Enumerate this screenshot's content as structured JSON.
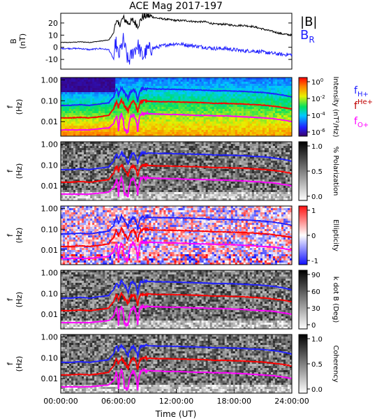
{
  "title": "ACE Mag 2017-197",
  "xlabel": "Time (UT)",
  "xticks": [
    "00:00:00",
    "06:00:00",
    "12:00:00",
    "18:00:00",
    "24:00:00"
  ],
  "freq_ticks": [
    "1.00",
    "0.10",
    "0.01"
  ],
  "freq_ylabel": [
    "f",
    "(Hz)"
  ],
  "colors": {
    "black": "#000000",
    "blue": "#2020ff",
    "red": "#ff0000",
    "magenta": "#ff00ff",
    "darkred": "#c00000"
  },
  "legend_b": {
    "total": "|B|",
    "radial": "B",
    "radial_sub": "R"
  },
  "legend_f": [
    {
      "base": "f",
      "sub": "H+",
      "sup": "",
      "color": "#2020ff"
    },
    {
      "base": "f",
      "sub": "",
      "sup": "He+",
      "color": "#c00000"
    },
    {
      "base": "f",
      "sub": "O+",
      "sup": "",
      "color": "#ff00ff"
    }
  ],
  "chart_data": [
    {
      "type": "line",
      "panel": "B",
      "ylabel": [
        "B",
        "(nT)"
      ],
      "yticks": [
        "20",
        "10",
        "0",
        "-10"
      ],
      "ylim": [
        -18,
        28
      ],
      "x_hours": [
        0,
        1,
        2,
        3,
        4,
        5,
        5.5,
        5.7,
        6,
        6.5,
        7,
        7.5,
        8,
        8.5,
        9,
        10,
        11,
        12,
        13,
        14,
        15,
        16,
        17,
        18,
        19,
        20,
        21,
        22,
        23,
        24
      ],
      "series": [
        {
          "name": "|B|",
          "color": "#000000",
          "values": [
            4,
            4,
            4.5,
            4,
            5,
            6,
            12,
            22,
            18,
            24,
            20,
            22,
            18,
            25,
            26,
            24,
            23,
            22,
            22,
            21,
            21,
            19,
            19,
            18,
            18,
            17,
            15,
            13,
            11,
            10
          ]
        },
        {
          "name": "B_R",
          "color": "#2020ff",
          "values": [
            -1,
            -1,
            -1,
            -2,
            -1,
            -2,
            -10,
            5,
            -8,
            6,
            -12,
            -4,
            2,
            -8,
            -2,
            0,
            2,
            3,
            2,
            1,
            0,
            -1,
            -1,
            -2,
            -3,
            -3,
            -4,
            -5,
            -6,
            -6
          ]
        }
      ]
    },
    {
      "type": "heatmap",
      "panel": "Intensity",
      "colorbar_label": "Intensity (nT²/Hz)",
      "colorbar_ticks": [
        "10^0",
        "10^-2",
        "10^-4",
        "10^-6"
      ],
      "colormap": "rainbow"
    },
    {
      "type": "heatmap",
      "panel": "% Polarization",
      "colorbar_label": "% Polarization",
      "colorbar_ticks": [
        "1.0",
        "0.5",
        "0.0"
      ],
      "colormap": "gray"
    },
    {
      "type": "heatmap",
      "panel": "Ellipticity",
      "colorbar_label": "Ellipticity",
      "colorbar_ticks": [
        "1",
        "0",
        "-1"
      ],
      "colormap": "bwr"
    },
    {
      "type": "heatmap",
      "panel": "k dot B",
      "colorbar_label": "k dot B (Deg)",
      "colorbar_ticks": [
        "90",
        "60",
        "30",
        "0"
      ],
      "colormap": "gray"
    },
    {
      "type": "heatmap",
      "panel": "Coherency",
      "colorbar_label": "Coherency",
      "colorbar_ticks": [
        "1.0",
        "0.5",
        "0.0"
      ],
      "colormap": "gray"
    },
    {
      "type": "line",
      "panel": "gyrofrequencies",
      "ylabel": "f (Hz)",
      "x_hours": [
        0,
        1,
        2,
        3,
        4,
        5,
        5.5,
        5.8,
        6,
        6.3,
        6.6,
        7,
        7.3,
        7.6,
        8,
        8.3,
        8.6,
        9,
        10,
        11,
        12,
        13,
        14,
        15,
        16,
        17,
        18,
        19,
        20,
        21,
        22,
        23,
        24
      ],
      "series": [
        {
          "name": "H+",
          "color": "#2020ff",
          "values": [
            0.06,
            0.06,
            0.065,
            0.06,
            0.07,
            0.08,
            0.15,
            0.35,
            0.2,
            0.4,
            0.25,
            0.12,
            0.3,
            0.35,
            0.1,
            0.35,
            0.38,
            0.38,
            0.36,
            0.36,
            0.35,
            0.34,
            0.33,
            0.32,
            0.3,
            0.3,
            0.29,
            0.28,
            0.26,
            0.25,
            0.22,
            0.19,
            0.15
          ]
        },
        {
          "name": "He+",
          "color": "#ff0000",
          "values": [
            0.015,
            0.015,
            0.016,
            0.015,
            0.017,
            0.02,
            0.04,
            0.09,
            0.05,
            0.1,
            0.06,
            0.03,
            0.075,
            0.09,
            0.025,
            0.09,
            0.095,
            0.095,
            0.09,
            0.09,
            0.088,
            0.085,
            0.083,
            0.08,
            0.075,
            0.075,
            0.072,
            0.07,
            0.065,
            0.062,
            0.055,
            0.048,
            0.04
          ]
        },
        {
          "name": "O+",
          "color": "#ff00ff",
          "values": [
            0.004,
            0.004,
            0.004,
            0.004,
            0.0045,
            0.005,
            0.008,
            0.02,
            0.003,
            0.025,
            0.004,
            0.003,
            0.018,
            0.022,
            0.003,
            0.022,
            0.024,
            0.024,
            0.023,
            0.022,
            0.022,
            0.021,
            0.02,
            0.02,
            0.019,
            0.019,
            0.018,
            0.017,
            0.016,
            0.015,
            0.014,
            0.012,
            0.01
          ]
        }
      ]
    }
  ]
}
